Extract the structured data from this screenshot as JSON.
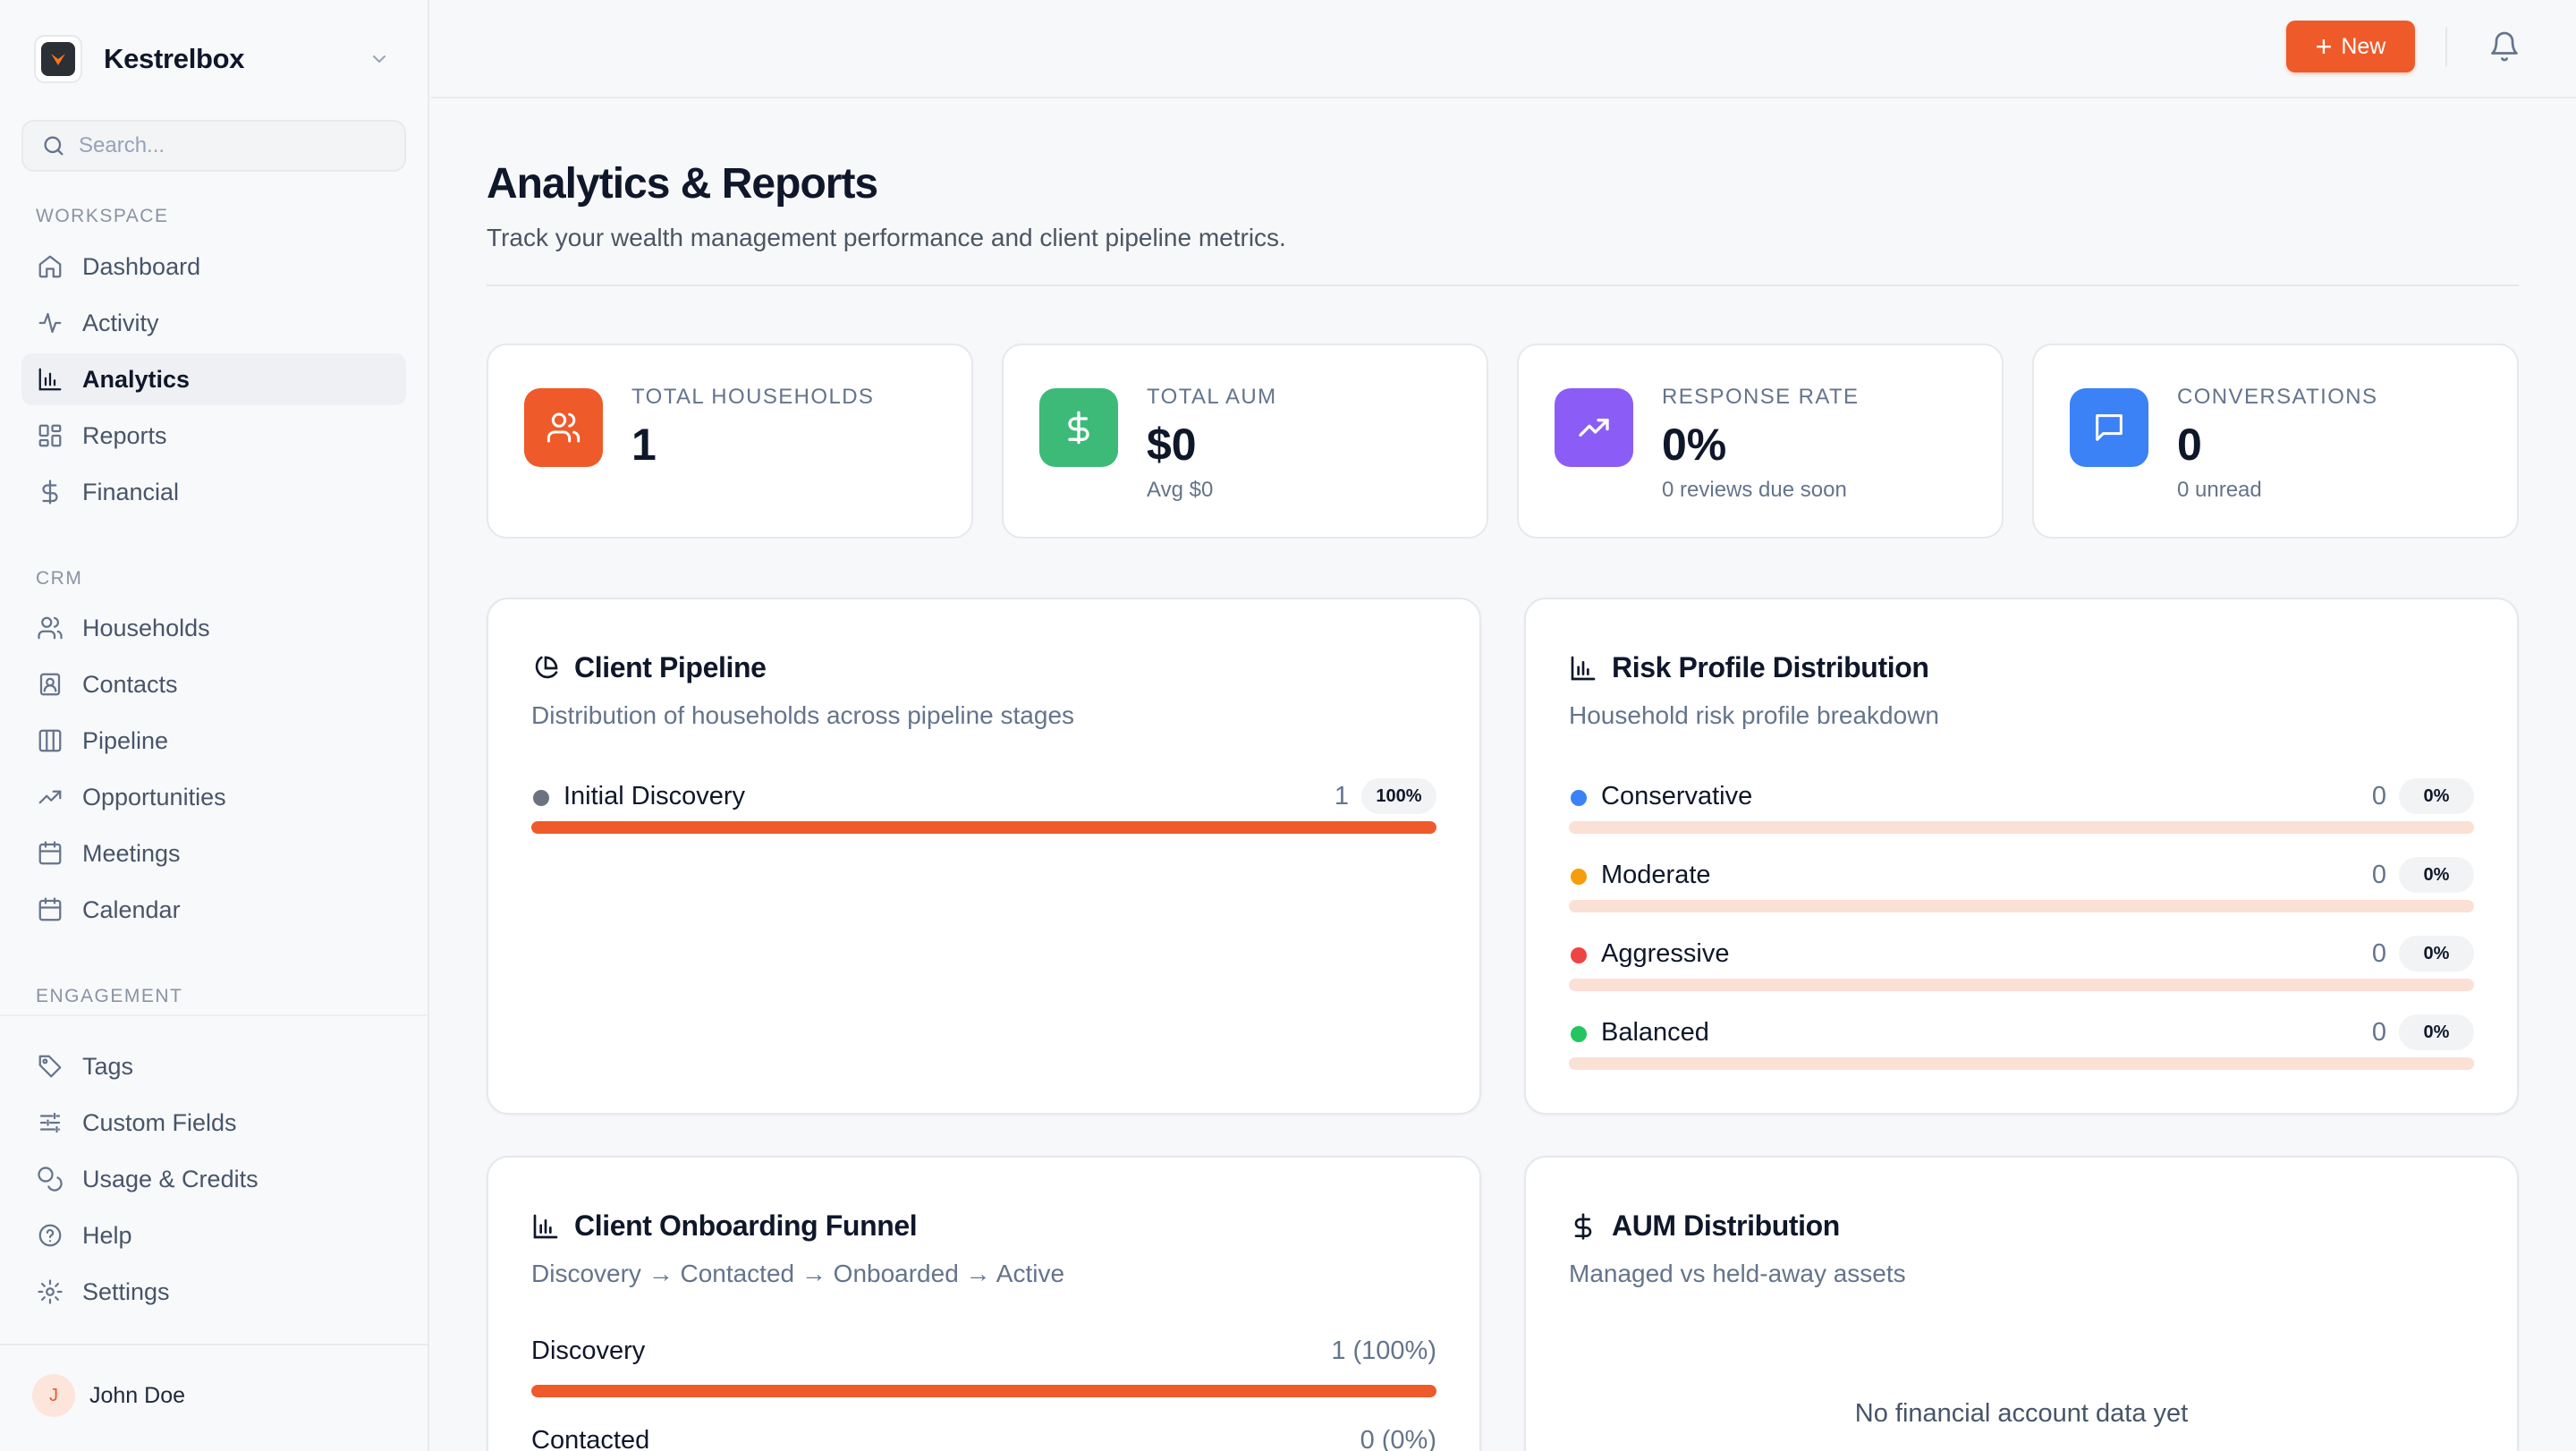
{
  "brand": {
    "name": "Kestrelbox"
  },
  "search": {
    "placeholder": "Search..."
  },
  "sidebar": {
    "sections": {
      "workspace": "WORKSPACE",
      "crm": "CRM",
      "engagement": "ENGAGEMENT"
    },
    "workspace_items": [
      {
        "label": "Dashboard",
        "icon": "home-icon"
      },
      {
        "label": "Activity",
        "icon": "activity-icon"
      },
      {
        "label": "Analytics",
        "icon": "bar-chart-icon",
        "active": true
      },
      {
        "label": "Reports",
        "icon": "grid-icon"
      },
      {
        "label": "Financial",
        "icon": "dollar-icon"
      }
    ],
    "crm_items": [
      {
        "label": "Households",
        "icon": "users-icon"
      },
      {
        "label": "Contacts",
        "icon": "contact-icon"
      },
      {
        "label": "Pipeline",
        "icon": "columns-icon"
      },
      {
        "label": "Opportunities",
        "icon": "trending-up-icon"
      },
      {
        "label": "Meetings",
        "icon": "calendar-icon"
      },
      {
        "label": "Calendar",
        "icon": "calendar-icon"
      }
    ],
    "engagement_items": [
      {
        "label": "Tags",
        "icon": "tag-icon"
      },
      {
        "label": "Custom Fields",
        "icon": "sliders-icon"
      },
      {
        "label": "Usage & Credits",
        "icon": "coins-icon"
      },
      {
        "label": "Help",
        "icon": "help-icon"
      },
      {
        "label": "Settings",
        "icon": "gear-icon"
      }
    ],
    "user": {
      "initial": "J",
      "name": "John Doe"
    }
  },
  "topbar": {
    "new_label": "New"
  },
  "page": {
    "title": "Analytics & Reports",
    "subtitle": "Track your wealth management performance and client pipeline metrics."
  },
  "stats": [
    {
      "label": "TOTAL HOUSEHOLDS",
      "value": "1",
      "sub": "",
      "color": "#ee5a2a",
      "icon": "users-icon"
    },
    {
      "label": "TOTAL AUM",
      "value": "$0",
      "sub": "Avg $0",
      "color": "#3dba78",
      "icon": "dollar-icon"
    },
    {
      "label": "RESPONSE RATE",
      "value": "0%",
      "sub": "0 reviews due soon",
      "color": "#8b5cf6",
      "icon": "trending-up-icon"
    },
    {
      "label": "CONVERSATIONS",
      "value": "0",
      "sub": "0 unread",
      "color": "#3b82f6",
      "icon": "message-icon"
    }
  ],
  "pipeline": {
    "title": "Client Pipeline",
    "subtitle": "Distribution of households across pipeline stages",
    "rows": [
      {
        "name": "Initial Discovery",
        "count": "1",
        "pct": "100%",
        "fraction": 1.0,
        "dot": "#6b7280"
      }
    ]
  },
  "risk": {
    "title": "Risk Profile Distribution",
    "subtitle": "Household risk profile breakdown",
    "rows": [
      {
        "name": "Conservative",
        "count": "0",
        "pct": "0%",
        "fraction": 0,
        "dot": "#3b82f6"
      },
      {
        "name": "Moderate",
        "count": "0",
        "pct": "0%",
        "fraction": 0,
        "dot": "#f59e0b"
      },
      {
        "name": "Aggressive",
        "count": "0",
        "pct": "0%",
        "fraction": 0,
        "dot": "#ef4444"
      },
      {
        "name": "Balanced",
        "count": "0",
        "pct": "0%",
        "fraction": 0,
        "dot": "#22c55e"
      }
    ]
  },
  "funnel": {
    "title": "Client Onboarding Funnel",
    "subtitle": "Discovery → Contacted → Onboarded → Active",
    "rows": [
      {
        "name": "Discovery",
        "value": "1 (100%)",
        "fraction": 1.0
      },
      {
        "name": "Contacted",
        "value": "0 (0%)",
        "fraction": 0
      }
    ]
  },
  "aum": {
    "title": "AUM Distribution",
    "subtitle": "Managed vs held-away assets",
    "empty": "No financial account data yet"
  }
}
